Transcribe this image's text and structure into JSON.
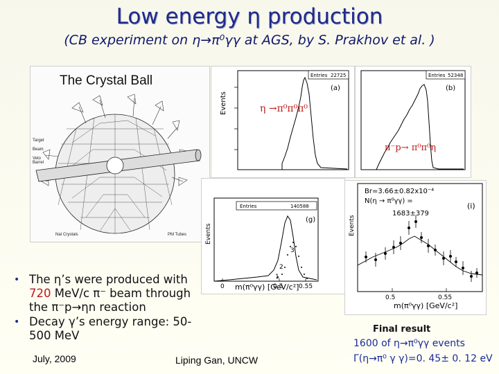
{
  "header": {
    "title": "Low energy η production",
    "subtitle": "(CB experiment on η→π⁰γγ at AGS, by S. Prakhov et al. )"
  },
  "crystal_ball": {
    "title": "The Crystal Ball",
    "labels": {
      "target": "Target",
      "beam": "Beam",
      "veto": "Veto Barrel",
      "nai": "NaI Crystals",
      "pmt": "PM Tubes"
    }
  },
  "histograms": {
    "a": {
      "stats_key": "Entries",
      "stats_val": "22725",
      "tag": "(a)",
      "y_label": "Events",
      "reaction": "η →π⁰π⁰π⁰"
    },
    "b": {
      "stats_key": "Entries",
      "stats_val": "52348",
      "tag": "(b)",
      "reaction": "π⁻p→ π⁰π⁰η"
    },
    "g": {
      "stats_key": "Entries",
      "stats_val": "140588",
      "tag": "(g)",
      "y_label": "Events",
      "x_ticks": [
        "0",
        "0.5",
        "0.55"
      ],
      "x_title": "m(π⁰γγ) [GeV/c²]",
      "marks": [
        "3",
        "2",
        "1"
      ]
    },
    "i": {
      "line1": "Br=3.66±0.82x10⁻⁴",
      "line2": "N(η → π⁰γγ) =",
      "line3": "1683±379",
      "tag": "(i)",
      "y_label": "Events",
      "x_ticks": [
        "0.5",
        "0.55"
      ],
      "x_title": "m(π⁰γγ) [GeV/c²]"
    }
  },
  "bullets": {
    "b1_pre": "The η’s were produced with ",
    "b1_hl": "720",
    "b1_post": " MeV/c π⁻ beam through the π⁻p→ηn reaction",
    "b2": "Decay γ’s energy range: 50-500 MeV"
  },
  "footer": {
    "date": "July, 2009",
    "author": "Liping Gan, UNCW"
  },
  "final_result": {
    "heading": "Final result",
    "line1": "1600 of η→π⁰γγ events",
    "line2": "Γ(η→π⁰ γ γ)=0. 45± 0. 12 eV"
  },
  "colors": {
    "title": "#1f2a8a",
    "highlight": "#c01818",
    "result": "#1a2a9a"
  }
}
